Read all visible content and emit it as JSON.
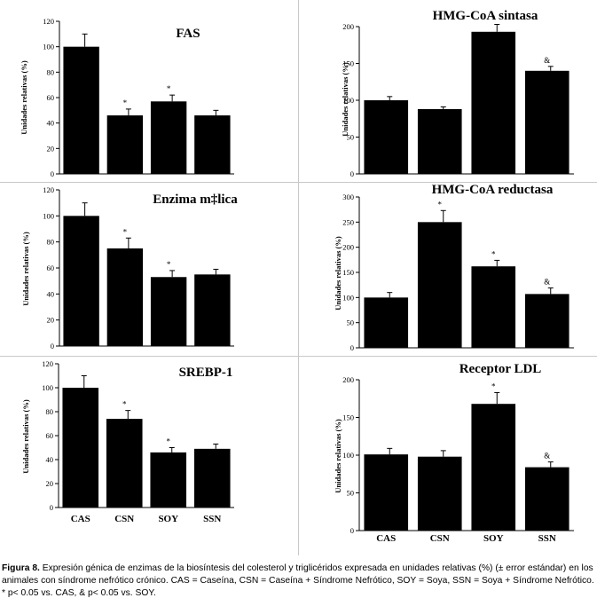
{
  "chart_data": [
    {
      "type": "bar",
      "title": "FAS",
      "ylabel": "Unidades relativas (%)",
      "categories": [
        "CAS",
        "CSN",
        "SOY",
        "SSN"
      ],
      "values": [
        100,
        46,
        57,
        46
      ],
      "errors": [
        10,
        5,
        5,
        4
      ],
      "markers": [
        "",
        "*",
        "*",
        ""
      ],
      "ylim": [
        0,
        120
      ],
      "yticks": [
        0,
        20,
        40,
        60,
        80,
        100,
        120
      ],
      "show_category_labels": false
    },
    {
      "type": "bar",
      "title": "HMG-CoA sintasa",
      "ylabel": "Unidades relativas (%)",
      "categories": [
        "CAS",
        "CSN",
        "SOY",
        "SSN"
      ],
      "values": [
        100,
        88,
        193,
        140
      ],
      "errors": [
        5,
        3,
        10,
        6
      ],
      "markers": [
        "",
        "",
        "*",
        "&"
      ],
      "ylim": [
        0,
        220
      ],
      "yticks": [
        0,
        50,
        100,
        150,
        200
      ],
      "show_category_labels": false
    },
    {
      "type": "bar",
      "title": "Enzima m‡lica",
      "ylabel": "Unidades relativas (%)",
      "categories": [
        "CAS",
        "CSN",
        "SOY",
        "SSN"
      ],
      "values": [
        100,
        75,
        53,
        55
      ],
      "errors": [
        10,
        8,
        5,
        4
      ],
      "markers": [
        "",
        "*",
        "*",
        ""
      ],
      "ylim": [
        0,
        120
      ],
      "yticks": [
        0,
        20,
        40,
        60,
        80,
        100,
        120
      ],
      "show_category_labels": false
    },
    {
      "type": "bar",
      "title": "HMG-CoA reductasa",
      "ylabel": "Unidades relativas (%)",
      "categories": [
        "CAS",
        "CSN",
        "SOY",
        "SSN"
      ],
      "values": [
        100,
        250,
        162,
        107
      ],
      "errors": [
        10,
        23,
        12,
        12
      ],
      "markers": [
        "",
        "*",
        "*",
        "&"
      ],
      "ylim": [
        0,
        300
      ],
      "yticks": [
        0,
        50,
        100,
        150,
        200,
        250,
        300
      ],
      "show_category_labels": false
    },
    {
      "type": "bar",
      "title": "SREBP-1",
      "ylabel": "Unidades relativas (%)",
      "categories": [
        "CAS",
        "CSN",
        "SOY",
        "SSN"
      ],
      "values": [
        100,
        74,
        46,
        49
      ],
      "errors": [
        10,
        7,
        4,
        4
      ],
      "markers": [
        "",
        "*",
        "*",
        ""
      ],
      "ylim": [
        0,
        120
      ],
      "yticks": [
        0,
        20,
        40,
        60,
        80,
        100,
        120
      ],
      "show_category_labels": true
    },
    {
      "type": "bar",
      "title": "Receptor LDL",
      "ylabel": "Unidades relativas (%)",
      "categories": [
        "CAS",
        "CSN",
        "SOY",
        "SSN"
      ],
      "values": [
        101,
        98,
        168,
        84
      ],
      "errors": [
        8,
        8,
        15,
        7
      ],
      "markers": [
        "",
        "",
        "*",
        "&"
      ],
      "ylim": [
        0,
        200
      ],
      "yticks": [
        0,
        50,
        100,
        150,
        200
      ],
      "show_category_labels": true
    }
  ],
  "caption": {
    "label": "Figura 8.",
    "text": " Expresión génica de enzimas de la biosíntesis del colesterol y triglicéridos expresada en unidades relativas (%) (± error estándar) en los animales con síndrome nefrótico crónico. CAS = Caseína, CSN = Caseína + Síndrome Nefrótico, SOY = Soya, SSN = Soya + Síndrome Nefrótico. * p< 0.05 vs. CAS, & p< 0.05 vs. SOY."
  },
  "colors": {
    "bar": "#000000",
    "background": "#ffffff",
    "divider": "#c8c8c8"
  }
}
